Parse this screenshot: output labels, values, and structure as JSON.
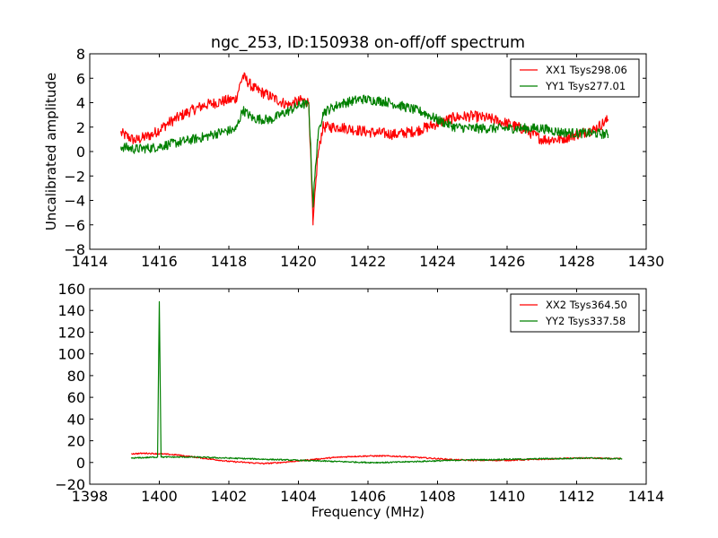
{
  "chart_data": [
    {
      "type": "line",
      "title": "ngc_253, ID:150938 on-off/off spectrum",
      "xlabel": "",
      "ylabel": "Uncalibrated amplitude",
      "xlim": [
        1414,
        1430
      ],
      "ylim": [
        -8,
        8
      ],
      "xticks": [
        "1414",
        "1416",
        "1418",
        "1420",
        "1422",
        "1424",
        "1426",
        "1428",
        "1430"
      ],
      "yticks": [
        "−8",
        "−6",
        "−4",
        "−2",
        "0",
        "2",
        "4",
        "6",
        "8"
      ],
      "legend_position": "top-right",
      "grid": false,
      "series": [
        {
          "name": "XX1 Tsys298.06",
          "color": "#ff0000",
          "noise": 0.45,
          "x": [
            1414.9,
            1415.3,
            1415.8,
            1416.3,
            1416.8,
            1417.3,
            1417.8,
            1418.2,
            1418.4,
            1418.7,
            1419.2,
            1419.7,
            1420.1,
            1420.3,
            1420.42,
            1420.55,
            1420.7,
            1421.2,
            1422.0,
            1422.8,
            1423.4,
            1424.0,
            1424.5,
            1425.0,
            1425.5,
            1426.0,
            1426.5,
            1427.0,
            1427.5,
            1428.0,
            1428.5,
            1428.9
          ],
          "y": [
            1.5,
            0.9,
            1.4,
            2.4,
            3.2,
            3.8,
            4.1,
            4.3,
            6.2,
            5.2,
            4.5,
            3.8,
            4.2,
            4.0,
            -6.0,
            -0.5,
            2.0,
            2.0,
            1.6,
            1.4,
            1.7,
            2.3,
            2.8,
            2.9,
            2.7,
            2.3,
            1.8,
            1.0,
            1.0,
            1.4,
            1.8,
            2.6
          ]
        },
        {
          "name": "YY1 Tsys277.01",
          "color": "#008000",
          "noise": 0.4,
          "x": [
            1414.9,
            1415.3,
            1415.8,
            1416.3,
            1416.8,
            1417.3,
            1417.8,
            1418.2,
            1418.4,
            1418.7,
            1419.2,
            1419.7,
            1420.1,
            1420.3,
            1420.42,
            1420.55,
            1420.7,
            1421.2,
            1421.8,
            1422.5,
            1423.0,
            1423.6,
            1424.0,
            1424.5,
            1425.0,
            1425.5,
            1426.0,
            1426.5,
            1427.0,
            1427.5,
            1428.0,
            1428.5,
            1428.9
          ],
          "y": [
            0.4,
            0.2,
            0.3,
            0.6,
            0.9,
            1.2,
            1.6,
            1.8,
            3.4,
            2.7,
            2.6,
            3.3,
            3.9,
            3.8,
            -4.3,
            1.0,
            3.2,
            3.9,
            4.3,
            4.1,
            3.7,
            3.2,
            2.6,
            2.0,
            1.9,
            1.9,
            1.9,
            1.9,
            1.9,
            1.6,
            1.5,
            1.5,
            1.4
          ]
        }
      ]
    },
    {
      "type": "line",
      "title": "",
      "xlabel": "Frequency (MHz)",
      "ylabel": "",
      "xlim": [
        1398,
        1414
      ],
      "ylim": [
        -20,
        160
      ],
      "xticks": [
        "1398",
        "1400",
        "1402",
        "1404",
        "1406",
        "1408",
        "1410",
        "1412",
        "1414"
      ],
      "yticks": [
        "−20",
        "0",
        "20",
        "40",
        "60",
        "80",
        "100",
        "120",
        "140",
        "160"
      ],
      "legend_position": "top-right",
      "grid": false,
      "series": [
        {
          "name": "XX2 Tsys364.50",
          "color": "#ff0000",
          "noise": 0.6,
          "x": [
            1399.2,
            1399.6,
            1400.0,
            1400.5,
            1401.0,
            1401.5,
            1402.0,
            1402.5,
            1403.0,
            1403.5,
            1404.0,
            1404.5,
            1405.0,
            1405.5,
            1406.0,
            1406.5,
            1407.0,
            1407.5,
            1408.0,
            1408.5,
            1409.0,
            1409.5,
            1410.0,
            1410.5,
            1411.0,
            1411.5,
            1412.0,
            1412.5,
            1413.0,
            1413.3
          ],
          "y": [
            8,
            8.5,
            8,
            7,
            5,
            3,
            1,
            0,
            -1,
            0,
            1.5,
            3,
            4.5,
            5.5,
            6,
            6,
            5.5,
            4.5,
            3.5,
            2.5,
            2,
            2,
            2,
            2.5,
            3,
            3.5,
            4,
            4,
            3.5,
            3.5
          ]
        },
        {
          "name": "YY2 Tsys337.58",
          "color": "#008000",
          "noise": 0.6,
          "x": [
            1399.2,
            1399.6,
            1399.95,
            1400.0,
            1400.05,
            1400.5,
            1401.0,
            1401.5,
            1402.0,
            1402.5,
            1403.0,
            1403.5,
            1404.0,
            1404.5,
            1405.0,
            1405.5,
            1406.0,
            1406.5,
            1407.0,
            1407.5,
            1408.0,
            1408.5,
            1409.0,
            1409.5,
            1410.0,
            1410.5,
            1411.0,
            1411.5,
            1412.0,
            1412.5,
            1413.0,
            1413.3
          ],
          "y": [
            4,
            4.5,
            5,
            148,
            5,
            5,
            5,
            4.5,
            4,
            3.5,
            3,
            2.5,
            2,
            1.5,
            1,
            0.5,
            0,
            0,
            0.5,
            1,
            1.5,
            2,
            2.5,
            2.5,
            3,
            3,
            3.5,
            3.5,
            4,
            4,
            3.5,
            3.5
          ]
        }
      ]
    }
  ]
}
